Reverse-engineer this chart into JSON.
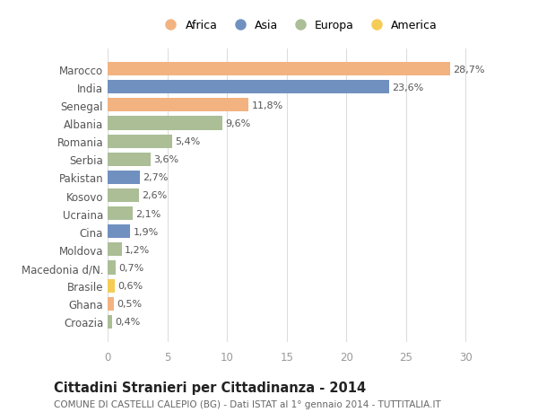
{
  "countries": [
    "Marocco",
    "India",
    "Senegal",
    "Albania",
    "Romania",
    "Serbia",
    "Pakistan",
    "Kosovo",
    "Ucraina",
    "Cina",
    "Moldova",
    "Macedonia d/N.",
    "Brasile",
    "Ghana",
    "Croazia"
  ],
  "values": [
    28.7,
    23.6,
    11.8,
    9.6,
    5.4,
    3.6,
    2.7,
    2.6,
    2.1,
    1.9,
    1.2,
    0.7,
    0.6,
    0.5,
    0.4
  ],
  "labels": [
    "28,7%",
    "23,6%",
    "11,8%",
    "9,6%",
    "5,4%",
    "3,6%",
    "2,7%",
    "2,6%",
    "2,1%",
    "1,9%",
    "1,2%",
    "0,7%",
    "0,6%",
    "0,5%",
    "0,4%"
  ],
  "regions": [
    "Africa",
    "Asia",
    "Africa",
    "Europa",
    "Europa",
    "Europa",
    "Asia",
    "Europa",
    "Europa",
    "Asia",
    "Europa",
    "Europa",
    "America",
    "Africa",
    "Europa"
  ],
  "colors": {
    "Africa": "#F2B380",
    "Asia": "#7090C0",
    "Europa": "#ABBE96",
    "America": "#F5CC55"
  },
  "legend_order": [
    "Africa",
    "Asia",
    "Europa",
    "America"
  ],
  "xlim": [
    0,
    32
  ],
  "xticks": [
    0,
    5,
    10,
    15,
    20,
    25,
    30
  ],
  "title": "Cittadini Stranieri per Cittadinanza - 2014",
  "subtitle": "COMUNE DI CASTELLI CALEPIO (BG) - Dati ISTAT al 1° gennaio 2014 - TUTTITALIA.IT",
  "bg_color": "#FFFFFF",
  "grid_color": "#DDDDDD",
  "bar_height": 0.75,
  "label_fontsize": 8,
  "ytick_fontsize": 8.5,
  "xtick_fontsize": 8.5,
  "title_fontsize": 10.5,
  "subtitle_fontsize": 7.5
}
